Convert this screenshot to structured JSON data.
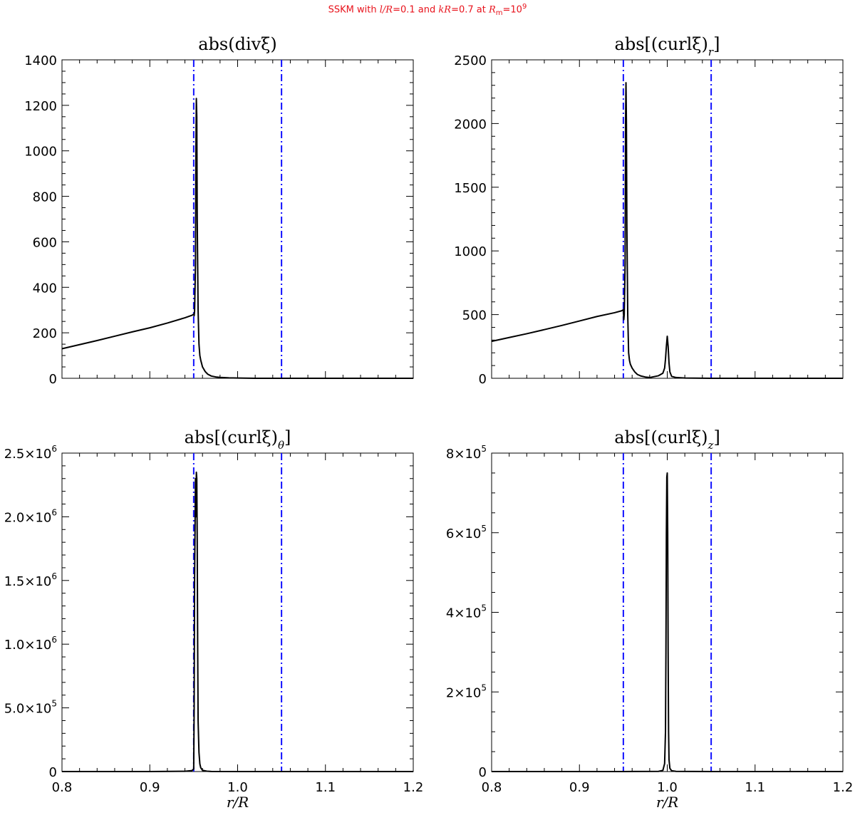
{
  "figure": {
    "suptitle_parts": {
      "prefix": "SSKM with ",
      "l_sym": "l",
      "r_sym": "/R",
      "l_val": "=0.1 and ",
      "k_sym": "kR",
      "k_val": "=0.7 at ",
      "rm_sym": "R",
      "rm_sub": "m",
      "rm_eq": "=10",
      "rm_exp": "9"
    },
    "colors": {
      "title": "#e8121b",
      "curve": "#000000",
      "vline": "#1010ff"
    }
  },
  "chart_data": [
    {
      "type": "line",
      "title": "abs(divξ)",
      "xlabel": "",
      "ylabel": "",
      "xlim": [
        0.8,
        1.2
      ],
      "ylim": [
        0,
        1400
      ],
      "xticks": [
        0.8,
        0.9,
        1.0,
        1.1,
        1.2
      ],
      "xtick_labels": [
        "",
        "",
        "",
        "",
        ""
      ],
      "yticks": [
        0,
        200,
        400,
        600,
        800,
        1000,
        1200,
        1400
      ],
      "ytick_labels": [
        "0",
        "200",
        "400",
        "600",
        "800",
        "1000",
        "1200",
        "1400"
      ],
      "vlines": [
        0.95,
        1.05
      ],
      "grid": false,
      "series": [
        {
          "x": [
            0.8,
            0.82,
            0.84,
            0.86,
            0.88,
            0.9,
            0.92,
            0.94,
            0.948,
            0.95,
            0.9505,
            0.951,
            0.952,
            0.9525,
            0.953,
            0.9535,
            0.954,
            0.955,
            0.956,
            0.957,
            0.958,
            0.96,
            0.963,
            0.966,
            0.97,
            0.975,
            0.98,
            0.99,
            1.0,
            1.02,
            1.05,
            1.1,
            1.15,
            1.2
          ],
          "y": [
            130,
            148,
            166,
            185,
            204,
            222,
            243,
            266,
            277,
            282,
            275,
            295,
            500,
            1000,
            1230,
            1150,
            700,
            300,
            150,
            100,
            80,
            50,
            30,
            18,
            10,
            6,
            4,
            2,
            1,
            0,
            0,
            0,
            0,
            0
          ]
        }
      ]
    },
    {
      "type": "line",
      "title": "abs[(curlξ)r]",
      "xlabel": "",
      "ylabel": "",
      "xlim": [
        0.8,
        1.2
      ],
      "ylim": [
        0,
        2500
      ],
      "xticks": [
        0.8,
        0.9,
        1.0,
        1.1,
        1.2
      ],
      "xtick_labels": [
        "",
        "",
        "",
        "",
        ""
      ],
      "yticks": [
        0,
        500,
        1000,
        1500,
        2000,
        2500
      ],
      "ytick_labels": [
        "0",
        "500",
        "1000",
        "1500",
        "2000",
        "2500"
      ],
      "vlines": [
        0.95,
        1.05
      ],
      "grid": false,
      "series": [
        {
          "x": [
            0.8,
            0.82,
            0.84,
            0.86,
            0.88,
            0.9,
            0.92,
            0.94,
            0.948,
            0.95,
            0.9505,
            0.951,
            0.952,
            0.9525,
            0.953,
            0.9535,
            0.954,
            0.955,
            0.956,
            0.957,
            0.958,
            0.96,
            0.963,
            0.966,
            0.97,
            0.975,
            0.98,
            0.99,
            0.995,
            0.997,
            0.998,
            0.999,
            1.0,
            1.001,
            1.002,
            1.003,
            1.005,
            1.01,
            1.02,
            1.05,
            1.1,
            1.15,
            1.2
          ],
          "y": [
            290,
            320,
            350,
            382,
            415,
            450,
            485,
            515,
            530,
            538,
            460,
            500,
            900,
            2000,
            2320,
            2000,
            1200,
            500,
            200,
            140,
            110,
            80,
            50,
            30,
            18,
            10,
            6,
            20,
            40,
            80,
            150,
            250,
            330,
            250,
            120,
            50,
            15,
            6,
            2,
            0,
            0,
            0,
            0
          ]
        }
      ]
    },
    {
      "type": "line",
      "title": "abs[(curlξ)θ]",
      "xlabel": "r/R",
      "ylabel": "",
      "xlim": [
        0.8,
        1.2
      ],
      "ylim": [
        0,
        2500000
      ],
      "xticks": [
        0.8,
        0.9,
        1.0,
        1.1,
        1.2
      ],
      "xtick_labels": [
        "0.8",
        "0.9",
        "1.0",
        "1.1",
        "1.2"
      ],
      "yticks": [
        0,
        500000,
        1000000,
        1500000,
        2000000,
        2500000
      ],
      "ytick_labels": [
        {
          "mant": "0",
          "exp": ""
        },
        {
          "mant": "5.0×10",
          "exp": "5"
        },
        {
          "mant": "1.0×10",
          "exp": "6"
        },
        {
          "mant": "1.5×10",
          "exp": "6"
        },
        {
          "mant": "2.0×10",
          "exp": "6"
        },
        {
          "mant": "2.5×10",
          "exp": "6"
        }
      ],
      "vlines": [
        0.95,
        1.05
      ],
      "grid": false,
      "series": [
        {
          "x": [
            0.8,
            0.9,
            0.94,
            0.948,
            0.95,
            0.9505,
            0.951,
            0.952,
            0.9525,
            0.953,
            0.9535,
            0.954,
            0.9545,
            0.955,
            0.956,
            0.957,
            0.958,
            0.96,
            0.965,
            0.97,
            1.0,
            1.1,
            1.2
          ],
          "y": [
            0,
            0,
            2000,
            8000,
            20000,
            500000,
            1500000,
            2300000,
            2000000,
            2350000,
            2300000,
            1800000,
            1000000,
            400000,
            150000,
            60000,
            30000,
            10000,
            3000,
            1000,
            0,
            0,
            0
          ]
        }
      ]
    },
    {
      "type": "line",
      "title": "abs[(curlξ)z]",
      "xlabel": "r/R",
      "ylabel": "",
      "xlim": [
        0.8,
        1.2
      ],
      "ylim": [
        0,
        800000
      ],
      "xticks": [
        0.8,
        0.9,
        1.0,
        1.1,
        1.2
      ],
      "xtick_labels": [
        "0.8",
        "0.9",
        "1.0",
        "1.1",
        "1.2"
      ],
      "yticks": [
        0,
        200000,
        400000,
        600000,
        800000
      ],
      "ytick_labels": [
        {
          "mant": "0",
          "exp": ""
        },
        {
          "mant": "2×10",
          "exp": "5"
        },
        {
          "mant": "4×10",
          "exp": "5"
        },
        {
          "mant": "6×10",
          "exp": "5"
        },
        {
          "mant": "8×10",
          "exp": "5"
        }
      ],
      "vlines": [
        0.95,
        1.05
      ],
      "grid": false,
      "series": [
        {
          "x": [
            0.8,
            0.95,
            0.99,
            0.995,
            0.997,
            0.998,
            0.9985,
            0.999,
            0.9995,
            1.0,
            1.0005,
            1.001,
            1.0015,
            1.002,
            1.003,
            1.005,
            1.01,
            1.05,
            1.2
          ],
          "y": [
            0,
            0,
            500,
            3000,
            20000,
            100000,
            300000,
            600000,
            740000,
            750000,
            600000,
            300000,
            100000,
            30000,
            8000,
            2000,
            500,
            0,
            0
          ]
        }
      ]
    }
  ]
}
